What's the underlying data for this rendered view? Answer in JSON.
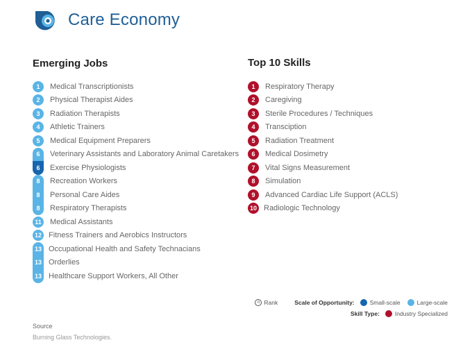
{
  "header": {
    "title": "Care Economy",
    "logo_icon": "target-icon"
  },
  "jobs": {
    "title": "Emerging Jobs",
    "items": [
      {
        "rank": "1",
        "label": "Medical Transcriptionists",
        "scale": "large"
      },
      {
        "rank": "2",
        "label": "Physical Therapist Aides",
        "scale": "large"
      },
      {
        "rank": "3",
        "label": "Radiation Therapists",
        "scale": "large"
      },
      {
        "rank": "4",
        "label": "Athletic Trainers",
        "scale": "large"
      },
      {
        "rank": "5",
        "label": "Medical Equipment Preparers",
        "scale": "large"
      },
      {
        "rank": "6",
        "label": "Veterinary Assistants and Laboratory Animal Caretakers",
        "scale": "large"
      },
      {
        "rank": "6",
        "label": "Exercise Physiologists",
        "scale": "small"
      },
      {
        "rank": "8",
        "label": "Recreation Workers",
        "scale": "large"
      },
      {
        "rank": "8",
        "label": "Personal Care Aides",
        "scale": "large"
      },
      {
        "rank": "8",
        "label": "Respiratory Therapists",
        "scale": "large"
      },
      {
        "rank": "11",
        "label": "Medical Assistants",
        "scale": "large"
      },
      {
        "rank": "12",
        "label": "Fitness Trainers and Aerobics Instructors",
        "scale": "large"
      },
      {
        "rank": "13",
        "label": "Occupational Health and Safety Technacians",
        "scale": "large"
      },
      {
        "rank": "13",
        "label": "Orderlies",
        "scale": "large"
      },
      {
        "rank": "13",
        "label": "Healthcare Support Workers, All Other",
        "scale": "large"
      }
    ]
  },
  "skills": {
    "title": "Top 10 Skills",
    "items": [
      {
        "rank": "1",
        "label": "Respiratory Therapy"
      },
      {
        "rank": "2",
        "label": "Caregiving"
      },
      {
        "rank": "3",
        "label": "Sterile Procedures / Techniques"
      },
      {
        "rank": "4",
        "label": "Transciption"
      },
      {
        "rank": "5",
        "label": "Radiation Treatment"
      },
      {
        "rank": "6",
        "label": "Medical Dosimetry"
      },
      {
        "rank": "7",
        "label": "Vital Signs Measurement"
      },
      {
        "rank": "8",
        "label": "Simulation"
      },
      {
        "rank": "9",
        "label": "Advanced Cardiac Life Support (ACLS)"
      },
      {
        "rank": "10",
        "label": "Radiologic Technology"
      }
    ]
  },
  "legend": {
    "rank_symbol": "n",
    "rank_label": "Rank",
    "scale_label": "Scale of Opportunity:",
    "small_label": "Small-scale",
    "large_label": "Large-scale",
    "skill_type_label": "Skill Type:",
    "industry_label": "Industry Specialized"
  },
  "colors": {
    "small_scale": "#1565b0",
    "large_scale": "#5ab4e6",
    "industry_specialized": "#b0102b",
    "title": "#1f5f96"
  },
  "source": {
    "label": "Source",
    "text": "Burning Glass Technologies."
  }
}
